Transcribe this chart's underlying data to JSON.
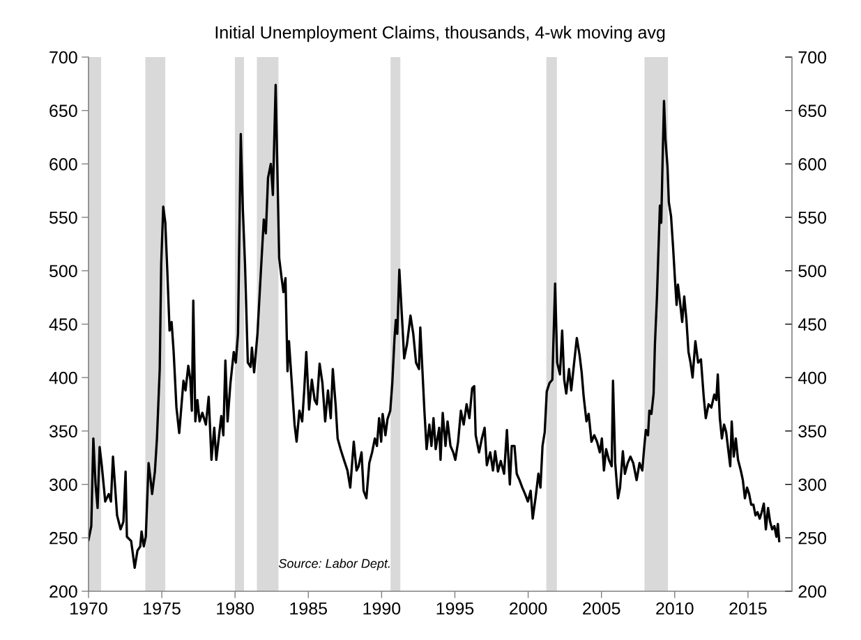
{
  "chart_data": {
    "type": "line",
    "title": "Initial Unemployment Claims, thousands, 4-wk moving avg",
    "annotations": [
      "Source: Labor Dept."
    ],
    "xlim": [
      1970,
      2018
    ],
    "xticks": [
      1970,
      1975,
      1980,
      1985,
      1990,
      1995,
      2000,
      2005,
      2010,
      2015
    ],
    "ylim": [
      200,
      700
    ],
    "yticks": [
      200,
      250,
      300,
      350,
      400,
      450,
      500,
      550,
      600,
      650,
      700
    ],
    "y2lim": [
      200,
      700
    ],
    "y2ticks": [
      200,
      250,
      300,
      350,
      400,
      450,
      500,
      550,
      600,
      650,
      700
    ],
    "marker": "none",
    "line_style": "solid",
    "bands": [
      {
        "axis": "x",
        "from": 1970.0,
        "to": 1970.86,
        "color": "#d9d9d9"
      },
      {
        "axis": "x",
        "from": 1973.88,
        "to": 1975.24,
        "color": "#d9d9d9"
      },
      {
        "axis": "x",
        "from": 1979.99,
        "to": 1980.61,
        "color": "#d9d9d9"
      },
      {
        "axis": "x",
        "from": 1981.49,
        "to": 1982.96,
        "color": "#d9d9d9"
      },
      {
        "axis": "x",
        "from": 1990.61,
        "to": 1991.28,
        "color": "#d9d9d9"
      },
      {
        "axis": "x",
        "from": 2001.24,
        "to": 2001.96,
        "color": "#d9d9d9"
      },
      {
        "axis": "x",
        "from": 2007.94,
        "to": 2009.54,
        "color": "#d9d9d9"
      }
    ],
    "series": [
      {
        "color": "#000000",
        "x": [
          1970.0,
          1970.19,
          1970.33,
          1970.48,
          1970.62,
          1970.76,
          1970.91,
          1971.05,
          1971.14,
          1971.38,
          1971.53,
          1971.67,
          1971.95,
          1972.19,
          1972.38,
          1972.53,
          1972.62,
          1972.91,
          1973.15,
          1973.34,
          1973.53,
          1973.62,
          1973.77,
          1973.91,
          1974.1,
          1974.24,
          1974.34,
          1974.53,
          1974.67,
          1974.86,
          1974.96,
          1975.1,
          1975.24,
          1975.38,
          1975.53,
          1975.67,
          1975.81,
          1976.0,
          1976.19,
          1976.48,
          1976.62,
          1976.81,
          1976.95,
          1977.05,
          1977.15,
          1977.29,
          1977.43,
          1977.58,
          1977.77,
          1978.01,
          1978.2,
          1978.39,
          1978.58,
          1978.72,
          1978.91,
          1979.06,
          1979.2,
          1979.34,
          1979.49,
          1979.68,
          1979.91,
          1980.05,
          1980.2,
          1980.39,
          1980.53,
          1980.68,
          1980.87,
          1981.06,
          1981.15,
          1981.3,
          1981.53,
          1981.72,
          1981.96,
          1982.1,
          1982.25,
          1982.44,
          1982.58,
          1982.77,
          1983.01,
          1983.15,
          1983.3,
          1983.44,
          1983.58,
          1983.68,
          1983.87,
          1984.06,
          1984.2,
          1984.39,
          1984.58,
          1984.72,
          1984.86,
          1985.05,
          1985.24,
          1985.43,
          1985.58,
          1985.77,
          1985.96,
          1986.15,
          1986.34,
          1986.53,
          1986.67,
          1986.86,
          1987.0,
          1987.2,
          1987.43,
          1987.67,
          1987.86,
          1988.1,
          1988.29,
          1988.43,
          1988.63,
          1988.77,
          1988.96,
          1989.16,
          1989.35,
          1989.54,
          1989.68,
          1989.83,
          1989.97,
          1990.07,
          1990.26,
          1990.4,
          1990.59,
          1990.73,
          1990.88,
          1990.97,
          1991.07,
          1991.21,
          1991.4,
          1991.54,
          1991.73,
          1991.97,
          1992.16,
          1992.35,
          1992.55,
          1992.64,
          1992.78,
          1992.92,
          1993.07,
          1993.26,
          1993.4,
          1993.54,
          1993.69,
          1993.93,
          1994.02,
          1994.17,
          1994.36,
          1994.5,
          1994.7,
          1994.89,
          1995.03,
          1995.22,
          1995.41,
          1995.6,
          1995.8,
          1995.99,
          1996.18,
          1996.32,
          1996.42,
          1996.65,
          1996.84,
          1997.03,
          1997.18,
          1997.41,
          1997.6,
          1997.75,
          1997.94,
          1998.13,
          1998.36,
          1998.55,
          1998.75,
          1998.88,
          1999.07,
          1999.22,
          1999.41,
          1999.6,
          1999.79,
          1999.98,
          2000.17,
          2000.31,
          2000.5,
          2000.7,
          2000.84,
          2000.98,
          2001.13,
          2001.27,
          2001.46,
          2001.65,
          2001.84,
          2001.98,
          2002.17,
          2002.32,
          2002.46,
          2002.6,
          2002.79,
          2002.94,
          2003.13,
          2003.32,
          2003.51,
          2003.65,
          2003.79,
          2003.98,
          2004.13,
          2004.32,
          2004.51,
          2004.7,
          2004.89,
          2005.03,
          2005.17,
          2005.32,
          2005.51,
          2005.7,
          2005.79,
          2005.94,
          2006.13,
          2006.27,
          2006.46,
          2006.6,
          2006.79,
          2006.98,
          2007.17,
          2007.4,
          2007.6,
          2007.79,
          2007.89,
          2008.03,
          2008.18,
          2008.27,
          2008.41,
          2008.56,
          2008.65,
          2008.79,
          2008.89,
          2008.99,
          2009.08,
          2009.18,
          2009.27,
          2009.37,
          2009.51,
          2009.6,
          2009.75,
          2009.89,
          2010.03,
          2010.13,
          2010.22,
          2010.37,
          2010.51,
          2010.65,
          2010.8,
          2010.94,
          2011.08,
          2011.22,
          2011.41,
          2011.6,
          2011.79,
          2011.98,
          2012.12,
          2012.31,
          2012.5,
          2012.7,
          2012.84,
          2012.94,
          2013.08,
          2013.22,
          2013.37,
          2013.51,
          2013.65,
          2013.79,
          2013.89,
          2014.03,
          2014.17,
          2014.32,
          2014.51,
          2014.65,
          2014.79,
          2014.94,
          2015.08,
          2015.22,
          2015.37,
          2015.51,
          2015.65,
          2015.8,
          2015.94,
          2016.08,
          2016.22,
          2016.37,
          2016.51,
          2016.65,
          2016.8,
          2016.94,
          2017.04,
          2017.13
        ],
        "values": [
          248,
          261,
          343,
          300,
          278,
          335,
          317,
          297,
          284,
          291,
          284,
          326,
          271,
          258,
          265,
          312,
          251,
          247,
          222,
          238,
          242,
          256,
          242,
          251,
          320,
          304,
          291,
          312,
          343,
          408,
          506,
          560,
          545,
          499,
          444,
          452,
          424,
          372,
          348,
          397,
          388,
          411,
          398,
          369,
          472,
          359,
          379,
          359,
          367,
          356,
          382,
          323,
          353,
          323,
          346,
          364,
          346,
          416,
          359,
          394,
          424,
          414,
          441,
          628,
          558,
          506,
          414,
          410,
          428,
          405,
          441,
          489,
          548,
          535,
          587,
          600,
          571,
          674,
          512,
          496,
          480,
          493,
          406,
          434,
          395,
          356,
          340,
          369,
          359,
          388,
          424,
          370,
          398,
          379,
          375,
          413,
          395,
          359,
          388,
          362,
          408,
          375,
          343,
          333,
          323,
          313,
          297,
          340,
          313,
          317,
          330,
          294,
          287,
          320,
          330,
          343,
          336,
          362,
          340,
          366,
          346,
          361,
          369,
          395,
          437,
          454,
          441,
          501,
          454,
          418,
          431,
          458,
          441,
          414,
          408,
          447,
          408,
          369,
          333,
          356,
          336,
          362,
          333,
          353,
          323,
          367,
          336,
          359,
          336,
          330,
          323,
          340,
          369,
          356,
          375,
          362,
          390,
          392,
          346,
          330,
          343,
          353,
          318,
          330,
          313,
          331,
          312,
          322,
          310,
          351,
          300,
          336,
          336,
          310,
          304,
          297,
          291,
          284,
          294,
          268,
          287,
          310,
          297,
          336,
          349,
          387,
          395,
          398,
          488,
          414,
          403,
          444,
          398,
          385,
          408,
          388,
          413,
          437,
          421,
          405,
          382,
          359,
          366,
          340,
          346,
          340,
          330,
          343,
          313,
          333,
          323,
          317,
          397,
          320,
          287,
          297,
          331,
          310,
          320,
          326,
          320,
          304,
          320,
          313,
          330,
          351,
          346,
          369,
          366,
          385,
          431,
          476,
          519,
          561,
          545,
          607,
          659,
          623,
          597,
          564,
          551,
          522,
          489,
          468,
          487,
          470,
          452,
          476,
          454,
          424,
          414,
          400,
          434,
          414,
          417,
          382,
          362,
          375,
          372,
          384,
          379,
          403,
          362,
          343,
          356,
          349,
          333,
          317,
          359,
          326,
          343,
          323,
          313,
          304,
          287,
          297,
          291,
          281,
          281,
          271,
          274,
          268,
          274,
          282,
          258,
          278,
          265,
          258,
          261,
          251,
          263,
          247
        ]
      }
    ]
  }
}
